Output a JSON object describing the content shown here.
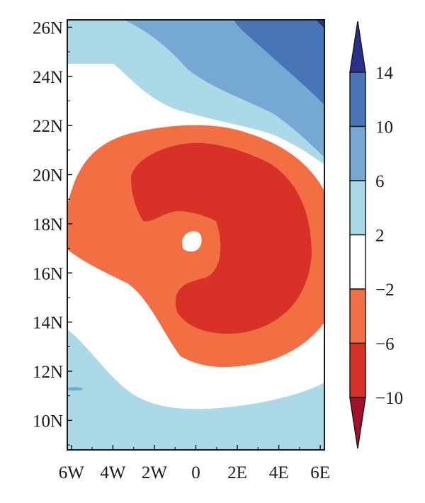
{
  "chart_data": {
    "type": "heatmap",
    "subtype": "filled-contour-map",
    "x_ticks": [
      "6W",
      "4W",
      "2W",
      "0",
      "2E",
      "4E",
      "6E"
    ],
    "x_values": [
      -6,
      -4,
      -2,
      0,
      2,
      4,
      6
    ],
    "y_ticks": [
      "10N",
      "12N",
      "14N",
      "16N",
      "18N",
      "20N",
      "22N",
      "24N",
      "26N"
    ],
    "y_values": [
      10,
      12,
      14,
      16,
      18,
      20,
      22,
      24,
      26
    ],
    "xlim": [
      -6.2,
      6.2
    ],
    "ylim": [
      8.8,
      26.3
    ],
    "colorbar": {
      "position": "right",
      "extend": "both",
      "levels": [
        14,
        10,
        6,
        2,
        -2,
        -6,
        -10
      ],
      "labels": [
        "14",
        "10",
        "6",
        "2",
        "−2",
        "−6",
        "−10"
      ],
      "colors": [
        "#2b2f8c",
        "#4874b8",
        "#75a9d3",
        "#acd9e8",
        "#ffffff",
        "#f26f44",
        "#d83228",
        "#a5102c"
      ]
    },
    "colors": {
      "light_blue": "#acd9e8",
      "mid_blue": "#75a9d3",
      "dark_blue": "#4874b8",
      "navy": "#2b2f8c",
      "white": "#ffffff",
      "orange": "#f26f44",
      "red": "#d83228"
    }
  }
}
